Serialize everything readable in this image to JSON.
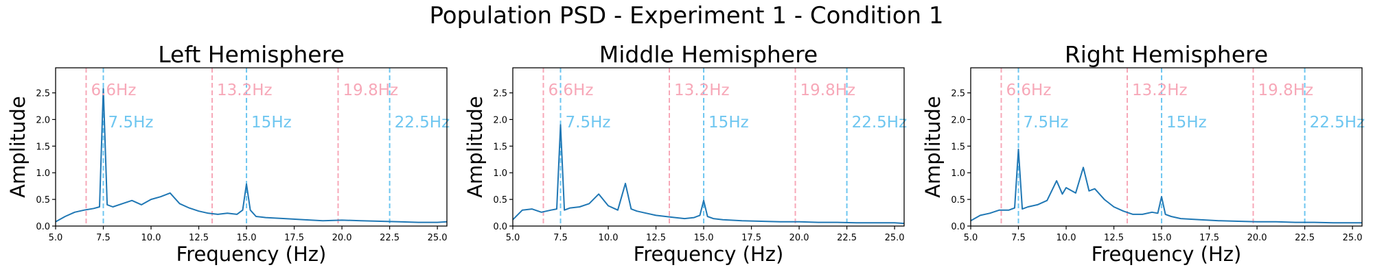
{
  "suptitle": "Population PSD - Experiment 1 - Condition 1",
  "chart_data": [
    {
      "type": "line",
      "title": "Left Hemisphere",
      "xlabel": "Frequency (Hz)",
      "ylabel": "Amplitude",
      "xlim": [
        5.0,
        25.5
      ],
      "ylim": [
        0.0,
        2.97
      ],
      "xticks": [
        "5.0",
        "7.5",
        "10.0",
        "12.5",
        "15.0",
        "17.5",
        "20.0",
        "22.5",
        "25.0"
      ],
      "yticks": [
        "0.0",
        "0.5",
        "1.0",
        "1.5",
        "2.0",
        "2.5"
      ],
      "grid": false,
      "series": [
        {
          "x": [
            5.0,
            5.5,
            6.0,
            6.5,
            7.0,
            7.3,
            7.5,
            7.7,
            8.0,
            8.5,
            9.0,
            9.5,
            10.0,
            10.5,
            11.0,
            11.5,
            12.0,
            12.5,
            13.0,
            13.5,
            14.0,
            14.5,
            14.8,
            15.0,
            15.2,
            15.5,
            16.0,
            17.0,
            18.0,
            19.0,
            20.0,
            21.0,
            22.0,
            23.0,
            24.0,
            25.0,
            25.5
          ],
          "y": [
            0.08,
            0.18,
            0.26,
            0.3,
            0.33,
            0.36,
            2.58,
            0.4,
            0.36,
            0.42,
            0.48,
            0.4,
            0.5,
            0.55,
            0.62,
            0.42,
            0.34,
            0.28,
            0.24,
            0.22,
            0.24,
            0.22,
            0.3,
            0.79,
            0.3,
            0.18,
            0.16,
            0.14,
            0.12,
            0.1,
            0.11,
            0.1,
            0.09,
            0.08,
            0.07,
            0.07,
            0.08
          ]
        }
      ],
      "markers": [
        {
          "freq": 6.6,
          "label": "6.6Hz",
          "color": "#f7a8b8",
          "row": "upper"
        },
        {
          "freq": 13.2,
          "label": "13.2Hz",
          "color": "#f7a8b8",
          "row": "upper"
        },
        {
          "freq": 19.8,
          "label": "19.8Hz",
          "color": "#f7a8b8",
          "row": "upper"
        },
        {
          "freq": 7.5,
          "label": "7.5Hz",
          "color": "#6ec6f0",
          "row": "lower"
        },
        {
          "freq": 15,
          "label": "15Hz",
          "color": "#6ec6f0",
          "row": "lower"
        },
        {
          "freq": 22.5,
          "label": "22.5Hz",
          "color": "#6ec6f0",
          "row": "lower"
        }
      ]
    },
    {
      "type": "line",
      "title": "Middle Hemisphere",
      "xlabel": "Frequency (Hz)",
      "ylabel": "Amplitude",
      "xlim": [
        5.0,
        25.5
      ],
      "ylim": [
        0.0,
        2.97
      ],
      "xticks": [
        "5.0",
        "7.5",
        "10.0",
        "12.5",
        "15.0",
        "17.5",
        "20.0",
        "22.5",
        "25.0"
      ],
      "yticks": [
        "0.0",
        "0.5",
        "1.0",
        "1.5",
        "2.0",
        "2.5"
      ],
      "grid": false,
      "series": [
        {
          "x": [
            5.0,
            5.5,
            6.0,
            6.5,
            7.0,
            7.3,
            7.5,
            7.7,
            8.0,
            8.5,
            9.0,
            9.5,
            10.0,
            10.5,
            10.9,
            11.2,
            11.5,
            12.0,
            12.5,
            13.0,
            13.5,
            14.0,
            14.5,
            14.8,
            15.0,
            15.2,
            15.5,
            16.0,
            17.0,
            18.0,
            19.0,
            20.0,
            21.0,
            22.0,
            23.0,
            24.0,
            25.0,
            25.5
          ],
          "y": [
            0.12,
            0.3,
            0.32,
            0.26,
            0.3,
            0.32,
            1.9,
            0.3,
            0.34,
            0.36,
            0.42,
            0.6,
            0.38,
            0.3,
            0.8,
            0.32,
            0.28,
            0.24,
            0.2,
            0.18,
            0.16,
            0.14,
            0.16,
            0.2,
            0.48,
            0.18,
            0.14,
            0.12,
            0.1,
            0.09,
            0.08,
            0.08,
            0.07,
            0.07,
            0.06,
            0.06,
            0.06,
            0.05
          ]
        }
      ],
      "markers": [
        {
          "freq": 6.6,
          "label": "6.6Hz",
          "color": "#f7a8b8",
          "row": "upper"
        },
        {
          "freq": 13.2,
          "label": "13.2Hz",
          "color": "#f7a8b8",
          "row": "upper"
        },
        {
          "freq": 19.8,
          "label": "19.8Hz",
          "color": "#f7a8b8",
          "row": "upper"
        },
        {
          "freq": 7.5,
          "label": "7.5Hz",
          "color": "#6ec6f0",
          "row": "lower"
        },
        {
          "freq": 15,
          "label": "15Hz",
          "color": "#6ec6f0",
          "row": "lower"
        },
        {
          "freq": 22.5,
          "label": "22.5Hz",
          "color": "#6ec6f0",
          "row": "lower"
        }
      ]
    },
    {
      "type": "line",
      "title": "Right Hemisphere",
      "xlabel": "Frequency (Hz)",
      "ylabel": "Amplitude",
      "xlim": [
        5.0,
        25.5
      ],
      "ylim": [
        0.0,
        2.97
      ],
      "xticks": [
        "5.0",
        "7.5",
        "10.0",
        "12.5",
        "15.0",
        "17.5",
        "20.0",
        "22.5",
        "25.0"
      ],
      "yticks": [
        "0.0",
        "0.5",
        "1.0",
        "1.5",
        "2.0",
        "2.5"
      ],
      "grid": false,
      "series": [
        {
          "x": [
            5.0,
            5.5,
            6.0,
            6.5,
            7.0,
            7.3,
            7.5,
            7.7,
            8.0,
            8.5,
            9.0,
            9.5,
            9.8,
            10.0,
            10.5,
            10.9,
            11.2,
            11.5,
            12.0,
            12.5,
            13.0,
            13.5,
            14.0,
            14.5,
            14.8,
            15.0,
            15.2,
            15.5,
            16.0,
            17.0,
            18.0,
            19.0,
            20.0,
            21.0,
            22.0,
            23.0,
            24.0,
            25.0,
            25.5
          ],
          "y": [
            0.1,
            0.2,
            0.24,
            0.3,
            0.3,
            0.34,
            1.44,
            0.32,
            0.36,
            0.4,
            0.48,
            0.85,
            0.6,
            0.72,
            0.62,
            1.1,
            0.66,
            0.7,
            0.5,
            0.36,
            0.28,
            0.22,
            0.22,
            0.26,
            0.24,
            0.55,
            0.22,
            0.18,
            0.14,
            0.12,
            0.1,
            0.09,
            0.08,
            0.08,
            0.07,
            0.07,
            0.06,
            0.06,
            0.06
          ]
        }
      ],
      "markers": [
        {
          "freq": 6.6,
          "label": "6.6Hz",
          "color": "#f7a8b8",
          "row": "upper"
        },
        {
          "freq": 13.2,
          "label": "13.2Hz",
          "color": "#f7a8b8",
          "row": "upper"
        },
        {
          "freq": 19.8,
          "label": "19.8Hz",
          "color": "#f7a8b8",
          "row": "upper"
        },
        {
          "freq": 7.5,
          "label": "7.5Hz",
          "color": "#6ec6f0",
          "row": "lower"
        },
        {
          "freq": 15,
          "label": "15Hz",
          "color": "#6ec6f0",
          "row": "lower"
        },
        {
          "freq": 22.5,
          "label": "22.5Hz",
          "color": "#6ec6f0",
          "row": "lower"
        }
      ]
    }
  ],
  "colors": {
    "line": "#1f77b4",
    "axes": "#000000",
    "background": "#ffffff"
  }
}
